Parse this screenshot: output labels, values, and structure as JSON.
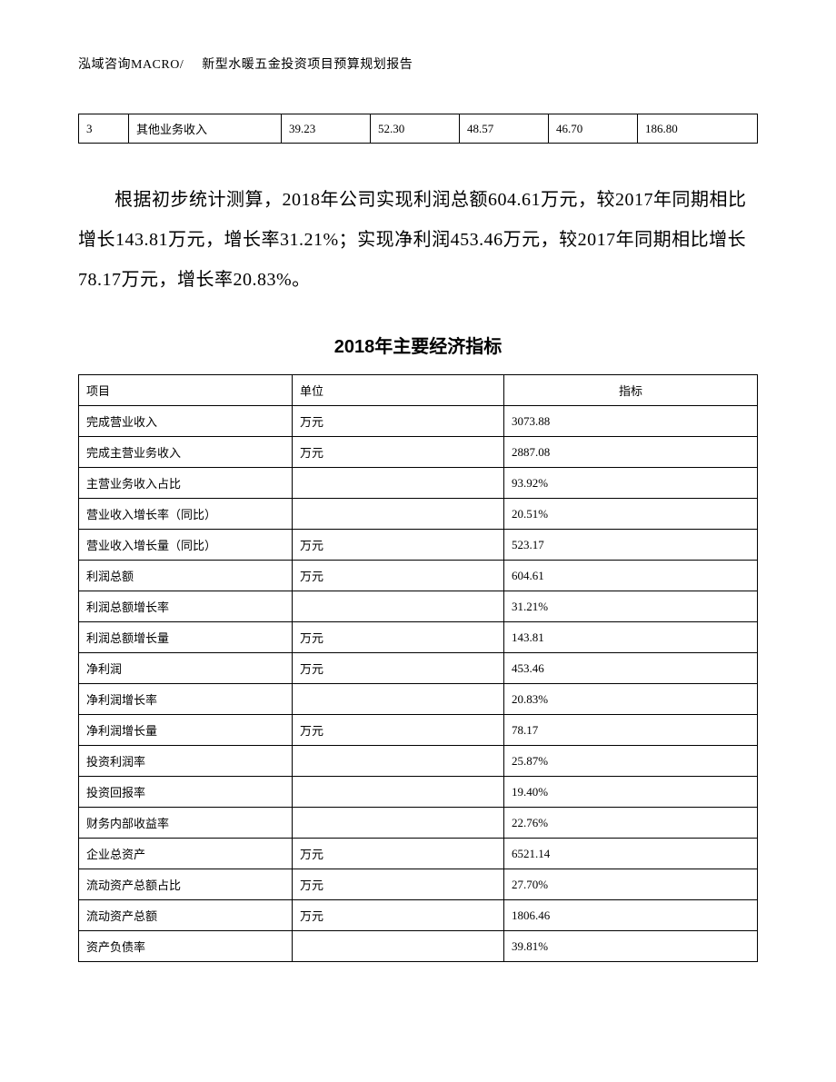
{
  "header": {
    "company": "泓域咨询MACRO/",
    "title": "新型水暖五金投资项目预算规划报告"
  },
  "smallTable": {
    "row": {
      "idx": "3",
      "name": "其他业务收入",
      "v1": "39.23",
      "v2": "52.30",
      "v3": "48.57",
      "v4": "46.70",
      "v5": "186.80"
    }
  },
  "paragraph": "根据初步统计测算，2018年公司实现利润总额604.61万元，较2017年同期相比增长143.81万元，增长率31.21%；实现净利润453.46万元，较2017年同期相比增长78.17万元，增长率20.83%。",
  "sectionTitle": "2018年主要经济指标",
  "mainTable": {
    "headers": {
      "col1": "项目",
      "col2": "单位",
      "col3": "指标"
    },
    "rows": [
      {
        "item": "完成营业收入",
        "unit": "万元",
        "value": "3073.88"
      },
      {
        "item": "完成主营业务收入",
        "unit": "万元",
        "value": "2887.08"
      },
      {
        "item": "主营业务收入占比",
        "unit": "",
        "value": "93.92%"
      },
      {
        "item": "营业收入增长率（同比）",
        "unit": "",
        "value": "20.51%"
      },
      {
        "item": "营业收入增长量（同比）",
        "unit": "万元",
        "value": "523.17"
      },
      {
        "item": "利润总额",
        "unit": "万元",
        "value": "604.61"
      },
      {
        "item": "利润总额增长率",
        "unit": "",
        "value": "31.21%"
      },
      {
        "item": "利润总额增长量",
        "unit": "万元",
        "value": "143.81"
      },
      {
        "item": "净利润",
        "unit": "万元",
        "value": "453.46"
      },
      {
        "item": "净利润增长率",
        "unit": "",
        "value": "20.83%"
      },
      {
        "item": "净利润增长量",
        "unit": "万元",
        "value": "78.17"
      },
      {
        "item": "投资利润率",
        "unit": "",
        "value": "25.87%"
      },
      {
        "item": "投资回报率",
        "unit": "",
        "value": "19.40%"
      },
      {
        "item": "财务内部收益率",
        "unit": "",
        "value": "22.76%"
      },
      {
        "item": "企业总资产",
        "unit": "万元",
        "value": "6521.14"
      },
      {
        "item": "流动资产总额占比",
        "unit": "万元",
        "value": "27.70%"
      },
      {
        "item": "流动资产总额",
        "unit": "万元",
        "value": "1806.46"
      },
      {
        "item": "资产负债率",
        "unit": "",
        "value": "39.81%"
      }
    ]
  }
}
